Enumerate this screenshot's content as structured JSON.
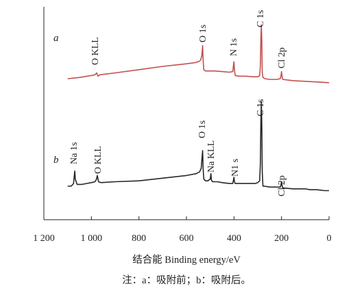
{
  "chart_data": {
    "type": "line",
    "xlabel": "结合能 Binding energy/eV",
    "x_reversed": true,
    "xlim": [
      1200,
      0
    ],
    "x_ticks": [
      1200,
      1000,
      800,
      600,
      400,
      200,
      0
    ],
    "x_tick_labels": [
      "1 200",
      "1 000",
      "800",
      "600",
      "400",
      "200",
      "0"
    ],
    "series": [
      {
        "name": "a",
        "color": "#c0504d",
        "points": [
          [
            1100,
            0.01
          ],
          [
            1050,
            0.03
          ],
          [
            1000,
            0.06
          ],
          [
            985,
            0.07
          ],
          [
            978,
            0.1
          ],
          [
            972,
            0.05
          ],
          [
            965,
            0.07
          ],
          [
            900,
            0.1
          ],
          [
            800,
            0.15
          ],
          [
            700,
            0.2
          ],
          [
            600,
            0.24
          ],
          [
            560,
            0.26
          ],
          [
            545,
            0.28
          ],
          [
            540,
            0.3
          ],
          [
            535,
            0.37
          ],
          [
            532,
            0.52
          ],
          [
            530,
            0.3
          ],
          [
            527,
            0.15
          ],
          [
            520,
            0.13
          ],
          [
            480,
            0.13
          ],
          [
            450,
            0.12
          ],
          [
            420,
            0.11
          ],
          [
            405,
            0.12
          ],
          [
            402,
            0.22
          ],
          [
            400,
            0.27
          ],
          [
            398,
            0.15
          ],
          [
            395,
            0.06
          ],
          [
            380,
            0.05
          ],
          [
            350,
            0.05
          ],
          [
            320,
            0.04
          ],
          [
            300,
            0.04
          ],
          [
            292,
            0.06
          ],
          [
            289,
            0.2
          ],
          [
            287,
            0.6
          ],
          [
            285,
            0.84
          ],
          [
            283,
            0.6
          ],
          [
            281,
            0.1
          ],
          [
            278,
            0.03
          ],
          [
            270,
            0.01
          ],
          [
            250,
            0.0
          ],
          [
            220,
            0.0
          ],
          [
            205,
            0.01
          ],
          [
            202,
            0.06
          ],
          [
            200,
            0.12
          ],
          [
            198,
            0.05
          ],
          [
            195,
            0.0
          ],
          [
            150,
            -0.02
          ],
          [
            100,
            -0.03
          ],
          [
            50,
            -0.04
          ],
          [
            0,
            -0.05
          ]
        ]
      },
      {
        "name": "b",
        "color": "#262626",
        "points": [
          [
            1100,
            0.0
          ],
          [
            1085,
            0.0
          ],
          [
            1075,
            0.03
          ],
          [
            1072,
            0.12
          ],
          [
            1070,
            0.17
          ],
          [
            1068,
            0.08
          ],
          [
            1060,
            0.02
          ],
          [
            1040,
            0.02
          ],
          [
            1020,
            0.03
          ],
          [
            1000,
            0.04
          ],
          [
            985,
            0.05
          ],
          [
            980,
            0.07
          ],
          [
            975,
            0.12
          ],
          [
            970,
            0.05
          ],
          [
            960,
            0.04
          ],
          [
            900,
            0.05
          ],
          [
            800,
            0.06
          ],
          [
            700,
            0.09
          ],
          [
            600,
            0.12
          ],
          [
            560,
            0.14
          ],
          [
            545,
            0.16
          ],
          [
            538,
            0.2
          ],
          [
            535,
            0.3
          ],
          [
            532,
            0.4
          ],
          [
            530,
            0.2
          ],
          [
            527,
            0.08
          ],
          [
            520,
            0.06
          ],
          [
            510,
            0.06
          ],
          [
            500,
            0.08
          ],
          [
            497,
            0.14
          ],
          [
            495,
            0.07
          ],
          [
            490,
            0.05
          ],
          [
            470,
            0.05
          ],
          [
            450,
            0.04
          ],
          [
            420,
            0.03
          ],
          [
            405,
            0.03
          ],
          [
            402,
            0.07
          ],
          [
            400,
            0.1
          ],
          [
            398,
            0.05
          ],
          [
            395,
            0.03
          ],
          [
            380,
            0.03
          ],
          [
            350,
            0.03
          ],
          [
            310,
            0.03
          ],
          [
            300,
            0.04
          ],
          [
            292,
            0.06
          ],
          [
            289,
            0.25
          ],
          [
            287,
            0.7
          ],
          [
            285,
            0.95
          ],
          [
            283,
            0.7
          ],
          [
            281,
            0.15
          ],
          [
            278,
            0.0
          ],
          [
            270,
            0.0
          ],
          [
            250,
            -0.01
          ],
          [
            220,
            -0.01
          ],
          [
            205,
            -0.01
          ],
          [
            202,
            0.02
          ],
          [
            200,
            0.05
          ],
          [
            198,
            0.01
          ],
          [
            195,
            -0.02
          ],
          [
            150,
            -0.03
          ],
          [
            100,
            -0.03
          ],
          [
            80,
            -0.04
          ],
          [
            50,
            -0.04
          ],
          [
            20,
            -0.05
          ],
          [
            0,
            -0.05
          ]
        ]
      }
    ],
    "annotations": [
      {
        "text": "a",
        "series": "a",
        "kind": "curve"
      },
      {
        "text": "O KLL",
        "series": "a",
        "kind": "peak"
      },
      {
        "text": "O 1s",
        "series": "a",
        "kind": "peak"
      },
      {
        "text": "N 1s",
        "series": "a",
        "kind": "peak"
      },
      {
        "text": "C 1s",
        "series": "a",
        "kind": "peak"
      },
      {
        "text": "Cl 2p",
        "series": "a",
        "kind": "peak"
      },
      {
        "text": "b",
        "series": "b",
        "kind": "curve"
      },
      {
        "text": "Na 1s",
        "series": "b",
        "kind": "peak"
      },
      {
        "text": "O KLL",
        "series": "b",
        "kind": "peak"
      },
      {
        "text": "O 1s",
        "series": "b",
        "kind": "peak"
      },
      {
        "text": "Na KLL",
        "series": "b",
        "kind": "peak"
      },
      {
        "text": "N1 s",
        "series": "b",
        "kind": "peak"
      },
      {
        "text": "C 1s",
        "series": "b",
        "kind": "peak"
      },
      {
        "text": "Cl 2p",
        "series": "b",
        "kind": "peak"
      }
    ],
    "note": "注：a：吸附前；b：吸附后。",
    "grid": false,
    "legend": "none"
  }
}
